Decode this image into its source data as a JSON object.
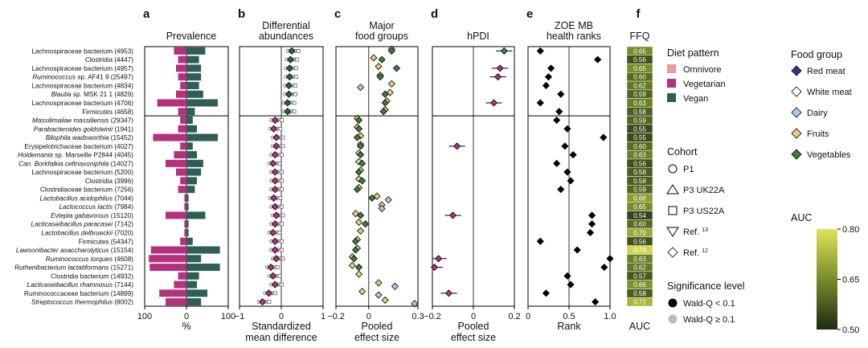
{
  "panels": {
    "a": {
      "letter": "a",
      "title": "Prevalence",
      "xlabel": "%",
      "ticks": [
        "100",
        "0",
        "100"
      ]
    },
    "b": {
      "letter": "b",
      "title": [
        "Differential",
        "abundances"
      ],
      "xlabel": [
        "Standardized",
        "mean difference"
      ],
      "ticks": [
        "−1",
        "0",
        "1"
      ]
    },
    "c": {
      "letter": "c",
      "title": [
        "Major",
        "food groups"
      ],
      "xlabel": [
        "Pooled",
        "effect size"
      ],
      "ticks": [
        "−0.2",
        "0",
        "0.3"
      ]
    },
    "d": {
      "letter": "d",
      "title": "hPDI",
      "xlabel": [
        "Pooled",
        "effect size"
      ],
      "ticks": [
        "−0.2",
        "0",
        "0.2"
      ]
    },
    "e": {
      "letter": "e",
      "title": [
        "ZOE MB",
        "health ranks"
      ],
      "xlabel": "Rank",
      "ticks": [
        "0",
        "0.5",
        "1.0"
      ]
    },
    "f": {
      "letter": "f",
      "title": "FFQ",
      "xlabel": "AUC"
    }
  },
  "species": [
    {
      "name": "Lachnospiraceae bacterium",
      "id": "(4953)",
      "italic": false
    },
    {
      "name": "Clostridia",
      "id": "(4447)",
      "italic": false
    },
    {
      "name": "Lachnospiraceae bacterium",
      "id": "(4957)",
      "italic": false
    },
    {
      "name": "Ruminococcus",
      "suffix": " sp. AF41 9",
      "id": "(25497)",
      "italic": true
    },
    {
      "name": "Lachnospiraceae bacterium",
      "id": "(4834)",
      "italic": false
    },
    {
      "name": "Blautia",
      "suffix": " sp. MSK 21 1",
      "id": "(4829)",
      "italic": true
    },
    {
      "name": "Lachnospiraceae bacterium",
      "id": "(4706)",
      "italic": false
    },
    {
      "name": "Firmicutes",
      "id": "(4658)",
      "italic": false
    },
    {
      "name": "Massilimaliae massiliensis",
      "id": "(29347)",
      "italic": true
    },
    {
      "name": "Parabacteroides goldsteinii",
      "id": "(1941)",
      "italic": true
    },
    {
      "name": "Bilophila wadsworthia",
      "id": "(15452)",
      "italic": true
    },
    {
      "name": "Erysipelotrichaceae bacterium",
      "id": "(4027)",
      "italic": false
    },
    {
      "name": "Holdemania",
      "suffix": " sp. Marseille P2844",
      "id": "(4045)",
      "italic": true
    },
    {
      "name": "Can.",
      "suffix": " Borkfalkia ceftriaxoniphila",
      "id": "(14027)",
      "italic": true
    },
    {
      "name": "Lachnospiraceae bacterium",
      "id": "(5200)",
      "italic": false
    },
    {
      "name": "Clostridia",
      "id": "(3996)",
      "italic": false
    },
    {
      "name": "Clostridiaceae bacterium",
      "id": "(7256)",
      "italic": false
    },
    {
      "name": "Lactobacillus acidophilus",
      "id": "(7044)",
      "italic": true
    },
    {
      "name": "Lactococcus lactis",
      "id": "(7984)",
      "italic": true
    },
    {
      "name": "Evtepia gabavorous",
      "id": "(15120)",
      "italic": true
    },
    {
      "name": "Lacticaseibacillus paracasei",
      "id": "(7142)",
      "italic": true
    },
    {
      "name": "Lactobacillus delbrueckii",
      "id": "(7020)",
      "italic": true
    },
    {
      "name": "Firmicutes",
      "id": "(54347)",
      "italic": false
    },
    {
      "name": "Lawsonibacter asaccharolyticus",
      "id": "(15154)",
      "italic": true
    },
    {
      "name": "Ruminococcus torques",
      "id": "(4608)",
      "italic": true
    },
    {
      "name": "Ruthenibacterium lactatiformans",
      "id": "(15271)",
      "italic": true
    },
    {
      "name": "Clostridia bacterium",
      "id": "(14932)",
      "italic": false
    },
    {
      "name": "Lacticaseibacillus rhamnosus",
      "id": "(7144)",
      "italic": true
    },
    {
      "name": "Ruminococcaceae bacterium",
      "id": "(14899)",
      "italic": false
    },
    {
      "name": "Streptococcus thermophilus",
      "id": "(8002)",
      "italic": true
    }
  ],
  "legend": {
    "diet_title": "Diet pattern",
    "diet": [
      {
        "label": "Omnivore",
        "color": "#ef9a9a"
      },
      {
        "label": "Vegetarian",
        "color": "#b5317c"
      },
      {
        "label": "Vegan",
        "color": "#2e5e56"
      }
    ],
    "cohort_title": "Cohort",
    "cohort": [
      {
        "label": "P1",
        "shape": "circle"
      },
      {
        "label": "P3 UK22A",
        "shape": "triangle-up"
      },
      {
        "label": "P3 US22A",
        "shape": "square"
      },
      {
        "label": "Ref. ",
        "sup": "13",
        "shape": "triangle-down"
      },
      {
        "label": "Ref. ",
        "sup": "12",
        "shape": "diamond"
      }
    ],
    "sig_title": "Significance level",
    "sig": [
      {
        "label": "Wald-Q < 0.1",
        "color": "#000000"
      },
      {
        "label": "Wald-Q ≥ 0.1",
        "color": "#bbbbbb"
      }
    ],
    "food_title": "Food group",
    "food": [
      {
        "label": "Red meat",
        "color": "#3a2f8f"
      },
      {
        "label": "White meat",
        "color": "#ffffff"
      },
      {
        "label": "Dairy",
        "color": "#a9cdea"
      },
      {
        "label": "Fruits",
        "color": "#e4cf7f"
      },
      {
        "label": "Vegetables",
        "color": "#3d7f43"
      }
    ],
    "auc_title": "AUC",
    "auc_ticks": [
      "0.80",
      "0.65",
      "0.50"
    ]
  },
  "chart_data": [
    {
      "panel": "a",
      "type": "bar",
      "title": "Prevalence",
      "xlabel": "%",
      "xlim": [
        -100,
        100
      ],
      "series": [
        {
          "name": "Vegetarian",
          "color": "#b5317c",
          "values": [
            -30,
            -20,
            -25,
            -20,
            -15,
            -25,
            -70,
            -20,
            -15,
            -20,
            -80,
            -15,
            -30,
            -50,
            -25,
            -15,
            -20,
            -5,
            -5,
            -50,
            -5,
            -5,
            -15,
            -85,
            -90,
            -88,
            -20,
            -30,
            -65,
            -50
          ]
        },
        {
          "name": "Vegan",
          "color": "#2e5e56",
          "values": [
            45,
            30,
            35,
            35,
            30,
            40,
            75,
            20,
            15,
            25,
            75,
            15,
            25,
            40,
            35,
            25,
            20,
            5,
            5,
            45,
            5,
            5,
            15,
            80,
            35,
            80,
            30,
            25,
            50,
            35
          ]
        }
      ]
    },
    {
      "panel": "b",
      "type": "scatter",
      "title": "Differential abundances",
      "xlabel": "Standardized mean difference",
      "xlim": [
        -1,
        1
      ],
      "series": [
        {
          "name": "Vegan",
          "color": "#2e5e56",
          "values": [
            0.25,
            0.22,
            0.2,
            0.2,
            0.18,
            0.18,
            0.15,
            0.15
          ]
        },
        {
          "name": "Vegetarian",
          "color": "#b5317c",
          "values": [
            -0.15,
            -0.18,
            -0.12,
            -0.12,
            -0.15,
            -0.2,
            -0.15,
            -0.15,
            -0.15,
            -0.18,
            -0.15,
            -0.12,
            -0.15,
            -0.2,
            -0.15,
            -0.15,
            -0.12,
            -0.25,
            -0.2,
            -0.15,
            -0.3,
            -0.45
          ]
        }
      ]
    },
    {
      "panel": "c",
      "type": "scatter",
      "title": "Major food groups",
      "xlabel": "Pooled effect size",
      "xlim": [
        -0.2,
        0.3
      ],
      "series": [
        {
          "name": "Fruits",
          "color": "#e4cf7f",
          "values": [
            0.14,
            0.03,
            0.06,
            0.07,
            0.14,
            0.13,
            0.11,
            0.1,
            -0.07,
            -0.07,
            -0.05,
            -0.05,
            -0.06,
            -0.06,
            -0.05,
            -0.06,
            -0.06,
            0.05,
            0.08,
            -0.08,
            -0.06,
            -0.05,
            -0.07,
            -0.07,
            -0.1,
            -0.1,
            -0.06,
            0.06,
            -0.04,
            0.1
          ]
        },
        {
          "name": "Vegetables",
          "color": "#3d7f43",
          "values": [
            0.14,
            0.08,
            0.17,
            0.07,
            null,
            0.1,
            0.1,
            0.09,
            -0.06,
            -0.06,
            -0.07,
            -0.05,
            -0.05,
            -0.04,
            -0.06,
            -0.04,
            -0.07,
            0.02,
            null,
            -0.05,
            -0.02,
            null,
            -0.08,
            -0.08,
            -0.09,
            -0.06,
            null,
            null,
            null,
            null
          ]
        },
        {
          "name": "Dairy",
          "color": "#a9cdea",
          "values": [
            null,
            null,
            null,
            null,
            -0.05,
            null,
            null,
            null,
            null,
            null,
            null,
            null,
            null,
            null,
            null,
            null,
            null,
            0.12,
            0.08,
            null,
            null,
            null,
            null,
            null,
            null,
            null,
            null,
            0.16,
            0.06,
            0.28
          ]
        }
      ]
    },
    {
      "panel": "d",
      "type": "scatter",
      "title": "hPDI",
      "xlabel": "Pooled effect size",
      "xlim": [
        -0.2,
        0.2
      ],
      "series": [
        {
          "name": "Pooled effect",
          "values": [
            0.15,
            null,
            0.13,
            0.12,
            null,
            null,
            0.1,
            null,
            null,
            null,
            null,
            -0.08,
            null,
            null,
            null,
            null,
            null,
            null,
            null,
            -0.1,
            null,
            null,
            null,
            null,
            -0.17,
            -0.19,
            null,
            null,
            -0.12,
            null
          ]
        }
      ]
    },
    {
      "panel": "e",
      "type": "scatter",
      "title": "ZOE MB health ranks",
      "xlabel": "Rank",
      "xlim": [
        0,
        1
      ],
      "values": [
        0.15,
        0.85,
        0.28,
        0.25,
        0.22,
        0.4,
        0.15,
        0.38,
        0.35,
        0.48,
        0.92,
        0.45,
        0.55,
        0.35,
        0.48,
        0.52,
        0.4,
        null,
        null,
        0.78,
        0.78,
        0.76,
        0.15,
        0.6,
        1.0,
        0.93,
        0.48,
        0.52,
        0.22,
        0.82
      ]
    },
    {
      "panel": "f",
      "type": "heatmap",
      "title": "FFQ",
      "xlabel": "AUC",
      "colorscale_range": [
        0.5,
        0.8
      ],
      "values": [
        "0.65",
        "0.56",
        "0.65",
        "0.60",
        "0.62",
        "0.59",
        "0.63",
        "0.58",
        "0.59",
        "0.55",
        "0.55",
        "0.60",
        "0.63",
        "0.56",
        "0.58",
        "0.58",
        "0.59",
        "0.68",
        "0.65",
        "0.54",
        "0.60",
        "0.70",
        "0.56",
        "0.78",
        "0.63",
        "0.62",
        "0.57",
        "0.66",
        "0.58",
        "0.72"
      ]
    }
  ]
}
